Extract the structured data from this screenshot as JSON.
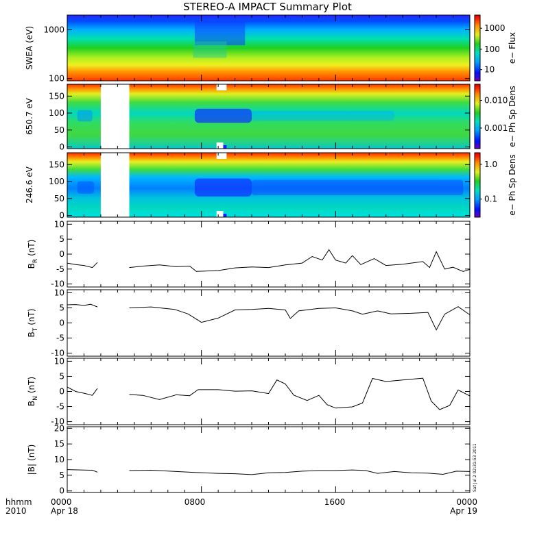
{
  "title": "STEREO-A IMPACT Summary Plot",
  "time_axis": {
    "row1": [
      "0000",
      "0800",
      "1600",
      "0000"
    ],
    "row2": [
      "Apr 18",
      "Apr 19"
    ],
    "label1": "hhmm",
    "label2": "2010"
  },
  "timestamp": "Sat Jul  2 02:31:53 2011",
  "colors": {
    "spectrogram_scale": [
      "#6a00b8",
      "#0010ff",
      "#00a0ff",
      "#00e0c0",
      "#20d020",
      "#e0f020",
      "#ff9000",
      "#ff2000",
      "#e00000"
    ],
    "trace": "#000000"
  },
  "chart_data": [
    {
      "type": "heatmap",
      "ylabel": "SWEA (eV)",
      "yscale": "log",
      "ylim": [
        90,
        2000
      ],
      "yticks": [
        "1000",
        "100"
      ],
      "colorbar": {
        "label": "e− Flux",
        "scale": "log",
        "ticks": [
          "1000",
          "100",
          "10"
        ]
      }
    },
    {
      "type": "heatmap",
      "ylabel": "650.7 eV",
      "ylim": [
        -5,
        185
      ],
      "yticks": [
        "150",
        "100",
        "50",
        "0"
      ],
      "data_gaps": [
        [
          2.0,
          3.7
        ]
      ],
      "colorbar": {
        "label": "e− Ph Sp Dens",
        "scale": "log",
        "ticks": [
          "0.010",
          "0.001"
        ]
      }
    },
    {
      "type": "heatmap",
      "ylabel": "246.6 eV",
      "ylim": [
        -5,
        185
      ],
      "yticks": [
        "150",
        "100",
        "50",
        "0"
      ],
      "data_gaps": [
        [
          2.0,
          3.7
        ]
      ],
      "colorbar": {
        "label": "e− Ph Sp Dens",
        "scale": "log",
        "ticks": [
          "1.0",
          "0.1"
        ]
      }
    },
    {
      "type": "line",
      "ylabel_main": "B",
      "ylabel_sub": "R",
      "ylabel_unit": "(nT)",
      "ylim": [
        -11,
        11
      ],
      "yticks": [
        "10",
        "5",
        "0",
        "-5",
        "-10"
      ],
      "xlim": [
        0,
        24
      ],
      "segments": [
        [
          [
            0,
            -3
          ],
          [
            0.5,
            -3.5
          ],
          [
            1.0,
            -3.8
          ],
          [
            1.5,
            -4.5
          ],
          [
            1.8,
            -2.8
          ]
        ],
        [
          [
            3.7,
            -4.5
          ],
          [
            4.5,
            -4
          ],
          [
            5.5,
            -3.6
          ],
          [
            6.5,
            -4.2
          ],
          [
            7.3,
            -4
          ],
          [
            7.7,
            -5.8
          ],
          [
            9,
            -5.5
          ],
          [
            10,
            -4.6
          ],
          [
            11,
            -4.3
          ],
          [
            12,
            -4.5
          ],
          [
            13,
            -3.6
          ],
          [
            14,
            -3
          ],
          [
            14.6,
            -0.8
          ],
          [
            15.2,
            -2
          ],
          [
            15.6,
            1.5
          ],
          [
            16,
            -2
          ],
          [
            16.6,
            -3
          ],
          [
            17,
            -0.5
          ],
          [
            17.5,
            -3.5
          ],
          [
            18.3,
            -1.5
          ],
          [
            19,
            -3.8
          ],
          [
            20,
            -3.4
          ],
          [
            21.2,
            -2.5
          ],
          [
            21.6,
            -4.5
          ],
          [
            22,
            0.8
          ],
          [
            22.5,
            -5
          ],
          [
            23,
            -4.4
          ],
          [
            23.6,
            -5.8
          ],
          [
            24,
            -5.1
          ]
        ]
      ]
    },
    {
      "type": "line",
      "ylabel_main": "B",
      "ylabel_sub": "T",
      "ylabel_unit": "(nT)",
      "ylim": [
        -11,
        11
      ],
      "yticks": [
        "10",
        "5",
        "0",
        "-5",
        "-10"
      ],
      "xlim": [
        0,
        24
      ],
      "segments": [
        [
          [
            0,
            6
          ],
          [
            0.5,
            6.1
          ],
          [
            1.0,
            5.8
          ],
          [
            1.4,
            6.2
          ],
          [
            1.8,
            5.3
          ]
        ],
        [
          [
            3.7,
            5
          ],
          [
            5,
            5.3
          ],
          [
            6.4,
            4.5
          ],
          [
            7.2,
            3
          ],
          [
            7.6,
            1.6
          ],
          [
            8,
            0.2
          ],
          [
            9,
            1.6
          ],
          [
            10,
            4.3
          ],
          [
            11,
            4.5
          ],
          [
            12,
            4.8
          ],
          [
            13,
            4.3
          ],
          [
            13.3,
            1.5
          ],
          [
            13.8,
            4
          ],
          [
            15,
            4.8
          ],
          [
            16,
            5
          ],
          [
            17,
            4
          ],
          [
            17.6,
            2.9
          ],
          [
            18.5,
            4
          ],
          [
            19.3,
            3
          ],
          [
            20.5,
            3.2
          ],
          [
            21.5,
            3.5
          ],
          [
            22,
            -2.3
          ],
          [
            22.5,
            2.9
          ],
          [
            23.3,
            5.4
          ],
          [
            24,
            2.7
          ]
        ]
      ]
    },
    {
      "type": "line",
      "ylabel_main": "B",
      "ylabel_sub": "N",
      "ylabel_unit": "(nT)",
      "ylim": [
        -11,
        11
      ],
      "yticks": [
        "10",
        "5",
        "0",
        "-5",
        "-10"
      ],
      "xlim": [
        0,
        24
      ],
      "segments": [
        [
          [
            0,
            1.5
          ],
          [
            0.5,
            0
          ],
          [
            1.0,
            -0.6
          ],
          [
            1.5,
            -1.3
          ],
          [
            1.8,
            1
          ]
        ],
        [
          [
            3.7,
            -1
          ],
          [
            4.5,
            -1.3
          ],
          [
            5.5,
            -2.7
          ],
          [
            6.5,
            -1.1
          ],
          [
            7.3,
            -1.4
          ],
          [
            7.8,
            0.6
          ],
          [
            9,
            0.6
          ],
          [
            10,
            0.1
          ],
          [
            11,
            0.2
          ],
          [
            12,
            -0.7
          ],
          [
            12.5,
            3.8
          ],
          [
            13,
            2.5
          ],
          [
            13.5,
            -1.2
          ],
          [
            14.3,
            -3
          ],
          [
            15,
            -1.3
          ],
          [
            15.5,
            -4.4
          ],
          [
            16,
            -5.5
          ],
          [
            17,
            -5.1
          ],
          [
            17.6,
            -3.8
          ],
          [
            18.2,
            4.3
          ],
          [
            19,
            3.3
          ],
          [
            20,
            3.8
          ],
          [
            21.2,
            4.4
          ],
          [
            21.7,
            -3.2
          ],
          [
            22.2,
            -6
          ],
          [
            22.8,
            -4.6
          ],
          [
            23.3,
            0.5
          ],
          [
            24,
            -1.5
          ]
        ]
      ]
    },
    {
      "type": "line",
      "ylabel_main": "|B|",
      "ylabel_sub": "",
      "ylabel_unit": "(nT)",
      "ylim": [
        -0.5,
        20.5
      ],
      "yticks": [
        "20",
        "15",
        "10",
        "5",
        "0"
      ],
      "xlim": [
        0,
        24
      ],
      "segments": [
        [
          [
            0,
            6.8
          ],
          [
            0.8,
            6.7
          ],
          [
            1.5,
            6.6
          ],
          [
            1.8,
            6.0
          ]
        ],
        [
          [
            3.7,
            6.5
          ],
          [
            5,
            6.6
          ],
          [
            6.5,
            6.2
          ],
          [
            7.6,
            5.9
          ],
          [
            9,
            5.6
          ],
          [
            10,
            5.5
          ],
          [
            11,
            5.2
          ],
          [
            12,
            5.8
          ],
          [
            13,
            5.9
          ],
          [
            14,
            6.3
          ],
          [
            15,
            6.5
          ],
          [
            16,
            6.5
          ],
          [
            17,
            6.7
          ],
          [
            17.8,
            6.5
          ],
          [
            18.5,
            5.6
          ],
          [
            19.5,
            6.2
          ],
          [
            20.5,
            5.8
          ],
          [
            21.5,
            5.7
          ],
          [
            22.4,
            5.3
          ],
          [
            23.2,
            6.3
          ],
          [
            24,
            6.2
          ]
        ]
      ]
    }
  ]
}
